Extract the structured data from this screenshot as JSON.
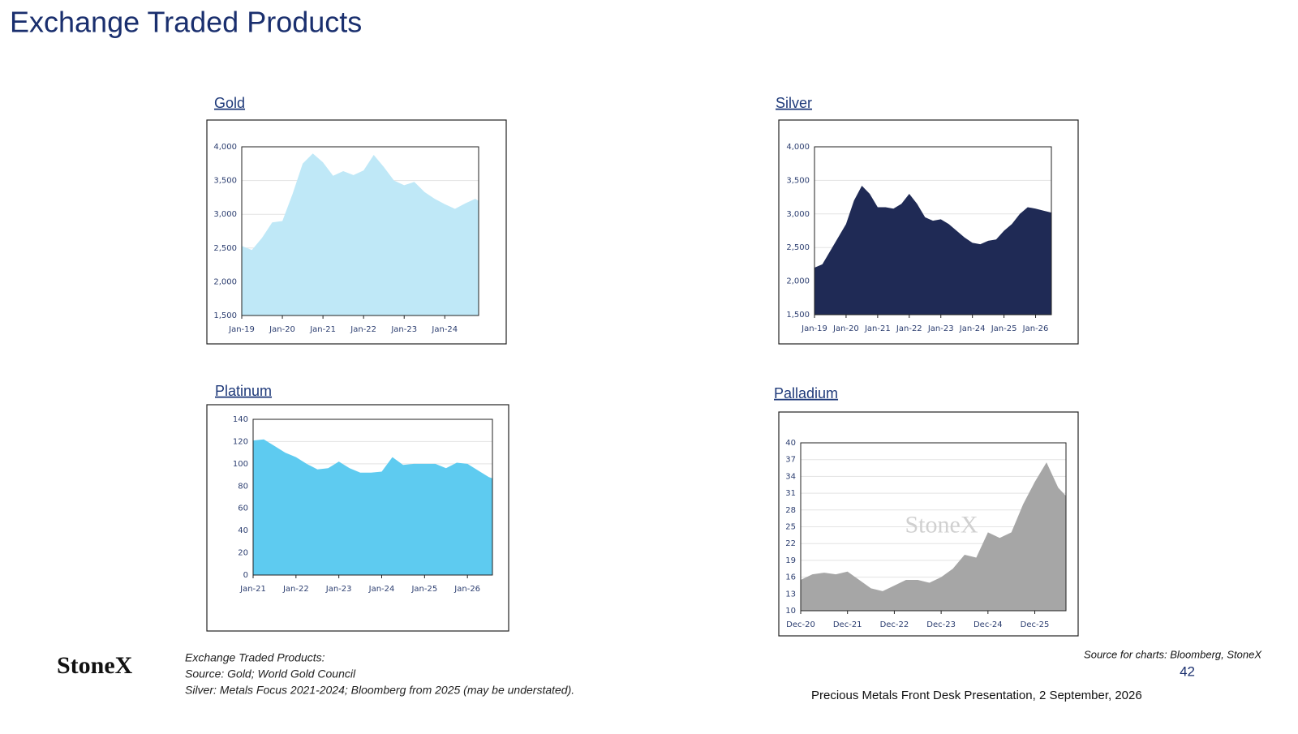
{
  "header": {
    "title": "Exchange Traded Products"
  },
  "chart_data": [
    {
      "type": "area",
      "title": "Gold",
      "color": "#bfe8f7",
      "x": [
        "Jan-19",
        "Apr-19",
        "Jul-19",
        "Oct-19",
        "Jan-20",
        "Apr-20",
        "Jul-20",
        "Oct-20",
        "Jan-21",
        "Apr-21",
        "Jul-21",
        "Oct-21",
        "Jan-22",
        "Apr-22",
        "Jul-22",
        "Oct-22",
        "Jan-23",
        "Apr-23",
        "Jul-23",
        "Oct-23",
        "Jan-24",
        "Apr-24",
        "Jul-24",
        "Oct-24",
        "Nov-24"
      ],
      "values": [
        2530,
        2470,
        2650,
        2880,
        2900,
        3300,
        3750,
        3900,
        3770,
        3570,
        3640,
        3580,
        3650,
        3880,
        3700,
        3500,
        3430,
        3480,
        3330,
        3230,
        3150,
        3080,
        3160,
        3230,
        3200
      ],
      "ylim": [
        1500,
        4000
      ],
      "yticks": [
        {
          "value": 1500,
          "label": "1,500"
        },
        {
          "value": 2000,
          "label": "2,000"
        },
        {
          "value": 2500,
          "label": "2,500"
        },
        {
          "value": 3000,
          "label": "3,000"
        },
        {
          "value": 3500,
          "label": "3,500"
        },
        {
          "value": 4000,
          "label": "4,000"
        }
      ],
      "xticks": [
        "Jan-19",
        "Jan-20",
        "Jan-21",
        "Jan-22",
        "Jan-23",
        "Jan-24"
      ],
      "grid": true
    },
    {
      "type": "area",
      "title": "Silver",
      "color": "#1f2a55",
      "x": [
        "Jan-19",
        "Apr-19",
        "Jul-19",
        "Oct-19",
        "Jan-20",
        "Apr-20",
        "Jul-20",
        "Oct-20",
        "Jan-21",
        "Apr-21",
        "Jul-21",
        "Oct-21",
        "Jan-22",
        "Apr-22",
        "Jul-22",
        "Oct-22",
        "Jan-23",
        "Apr-23",
        "Jul-23",
        "Oct-23",
        "Jan-24",
        "Apr-24",
        "Jul-24",
        "Oct-24",
        "Jan-25",
        "Apr-25",
        "Jul-25",
        "Oct-25",
        "Jan-26",
        "Apr-26",
        "Jul-26"
      ],
      "values": [
        2200,
        2250,
        2450,
        2650,
        2850,
        3200,
        3420,
        3300,
        3100,
        3100,
        3080,
        3150,
        3300,
        3150,
        2950,
        2900,
        2920,
        2850,
        2750,
        2650,
        2570,
        2550,
        2600,
        2620,
        2750,
        2850,
        3000,
        3100,
        3080,
        3050,
        3020
      ],
      "ylim": [
        1500,
        4000
      ],
      "yticks": [
        {
          "value": 1500,
          "label": "1,500"
        },
        {
          "value": 2000,
          "label": "2,000"
        },
        {
          "value": 2500,
          "label": "2,500"
        },
        {
          "value": 3000,
          "label": "3,000"
        },
        {
          "value": 3500,
          "label": "3,500"
        },
        {
          "value": 4000,
          "label": "4,000"
        }
      ],
      "xticks": [
        "Jan-19",
        "Jan-20",
        "Jan-21",
        "Jan-22",
        "Jan-23",
        "Jan-24",
        "Jan-25",
        "Jan-26"
      ],
      "grid": true
    },
    {
      "type": "area",
      "title": "Platinum",
      "color": "#5ecbf0",
      "x": [
        "Jan-21",
        "Apr-21",
        "Jul-21",
        "Oct-21",
        "Jan-22",
        "Apr-22",
        "Jul-22",
        "Oct-22",
        "Jan-23",
        "Apr-23",
        "Jul-23",
        "Oct-23",
        "Jan-24",
        "Apr-24",
        "Jul-24",
        "Oct-24",
        "Jan-25",
        "Apr-25",
        "Jul-25",
        "Oct-25",
        "Jan-26",
        "Apr-26",
        "Jul-26",
        "Aug-26"
      ],
      "values": [
        121,
        122,
        116,
        110,
        106,
        100,
        95,
        96,
        102,
        96,
        92,
        92,
        93,
        106,
        99,
        100,
        100,
        100,
        96,
        101,
        100,
        94,
        88,
        87
      ],
      "ylim": [
        0,
        140
      ],
      "yticks": [
        0,
        20,
        40,
        60,
        80,
        100,
        120,
        140
      ],
      "xticks": [
        "Jan-21",
        "Jan-22",
        "Jan-23",
        "Jan-24",
        "Jan-25",
        "Jan-26"
      ],
      "grid": true
    },
    {
      "type": "area",
      "title": "Palladium",
      "color": "#a6a6a6",
      "watermark": "StoneX",
      "x": [
        "Dec-20",
        "Mar-21",
        "Jun-21",
        "Sep-21",
        "Dec-21",
        "Mar-22",
        "Jun-22",
        "Sep-22",
        "Dec-22",
        "Mar-23",
        "Jun-23",
        "Sep-23",
        "Dec-23",
        "Mar-24",
        "Jun-24",
        "Sep-24",
        "Dec-24",
        "Mar-25",
        "Jun-25",
        "Sep-25",
        "Dec-25",
        "Mar-26",
        "Jun-26",
        "Aug-26"
      ],
      "values": [
        15.5,
        16.5,
        16.8,
        16.5,
        17,
        15.5,
        14,
        13.5,
        14.5,
        15.5,
        15.5,
        15,
        16,
        17.5,
        20,
        19.5,
        24,
        23,
        24,
        29,
        33,
        36.5,
        32,
        30.5
      ],
      "ylim": [
        10,
        40
      ],
      "yticks": [
        10,
        13,
        16,
        19,
        22,
        25,
        28,
        31,
        34,
        37,
        40
      ],
      "xticks": [
        "Dec-20",
        "Dec-21",
        "Dec-22",
        "Dec-23",
        "Dec-24",
        "Dec-25"
      ],
      "grid": true
    }
  ],
  "footer": {
    "logo": "StoneX",
    "notes": [
      "Exchange Traded Products:",
      "Source:   Gold; World Gold Council",
      "Silver: Metals Focus 2021-2024; Bloomberg from 2025 (may be understated)."
    ],
    "source": "Source for charts: Bloomberg, StoneX",
    "page": "42",
    "presentation": "Precious Metals Front Desk Presentation, 2 September, 2026"
  }
}
